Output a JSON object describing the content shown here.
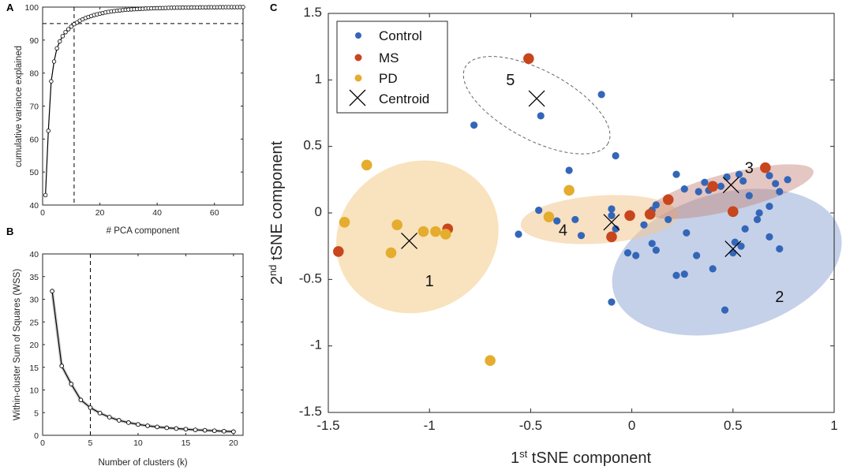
{
  "panels": {
    "a": {
      "label": "A"
    },
    "b": {
      "label": "B"
    },
    "c": {
      "label": "C"
    }
  },
  "chart_data": [
    {
      "type": "line",
      "panel": "A",
      "title": "",
      "xlabel": "# PCA component",
      "ylabel": "cumulative variance explained",
      "xlim": [
        0,
        70
      ],
      "ylim": [
        40,
        100
      ],
      "xticks": [
        "0",
        "20",
        "40",
        "60"
      ],
      "xtick_values": [
        0,
        20,
        40,
        60
      ],
      "yticks": [
        "40",
        "50",
        "60",
        "70",
        "80",
        "90",
        "100"
      ],
      "ytick_values": [
        40,
        50,
        60,
        70,
        80,
        90,
        100
      ],
      "threshold_y": 95,
      "threshold_x": 11,
      "x": [
        1,
        2,
        3,
        4,
        5,
        6,
        7,
        8,
        9,
        10,
        11,
        12,
        13,
        14,
        15,
        16,
        17,
        18,
        19,
        20,
        21,
        22,
        23,
        24,
        25,
        26,
        27,
        28,
        29,
        30,
        31,
        32,
        33,
        34,
        35,
        36,
        37,
        38,
        39,
        40,
        41,
        42,
        43,
        44,
        45,
        46,
        47,
        48,
        49,
        50,
        51,
        52,
        53,
        54,
        55,
        56,
        57,
        58,
        59,
        60,
        61,
        62,
        63,
        64,
        65,
        66,
        67,
        68,
        69,
        70
      ],
      "y": [
        43,
        62.5,
        77.5,
        83.5,
        87.5,
        89.6,
        91.2,
        92.4,
        93.3,
        94.1,
        94.8,
        95.3,
        95.9,
        96.3,
        96.7,
        97.0,
        97.3,
        97.6,
        97.8,
        98.0,
        98.2,
        98.4,
        98.55,
        98.7,
        98.8,
        98.9,
        99.0,
        99.1,
        99.2,
        99.25,
        99.3,
        99.35,
        99.4,
        99.45,
        99.5,
        99.55,
        99.6,
        99.62,
        99.65,
        99.68,
        99.7,
        99.72,
        99.75,
        99.77,
        99.79,
        99.81,
        99.83,
        99.84,
        99.85,
        99.86,
        99.87,
        99.88,
        99.89,
        99.9,
        99.91,
        99.92,
        99.93,
        99.94,
        99.95,
        99.96,
        99.96,
        99.97,
        99.97,
        99.98,
        99.98,
        99.99,
        99.99,
        99.99,
        100,
        100
      ]
    },
    {
      "type": "line",
      "panel": "B",
      "title": "",
      "xlabel": "Number of clusters (k)",
      "ylabel": "Within-cluster Sum of Squares (WSS)",
      "xlim": [
        0,
        21
      ],
      "ylim": [
        0,
        40
      ],
      "xticks": [
        "0",
        "5",
        "10",
        "15",
        "20"
      ],
      "xtick_values": [
        0,
        5,
        10,
        15,
        20
      ],
      "yticks": [
        "0",
        "5",
        "10",
        "15",
        "20",
        "25",
        "30",
        "35",
        "40"
      ],
      "ytick_values": [
        0,
        5,
        10,
        15,
        20,
        25,
        30,
        35,
        40
      ],
      "threshold_x": 5,
      "x": [
        1,
        2,
        3,
        4,
        5,
        6,
        7,
        8,
        9,
        10,
        11,
        12,
        13,
        14,
        15,
        16,
        17,
        18,
        19,
        20
      ],
      "y": [
        31.8,
        15.3,
        11.3,
        7.8,
        6.1,
        4.9,
        4.0,
        3.3,
        2.8,
        2.4,
        2.1,
        1.85,
        1.65,
        1.5,
        1.35,
        1.2,
        1.1,
        1.0,
        0.9,
        0.8
      ]
    },
    {
      "type": "scatter",
      "panel": "C",
      "title": "",
      "xlabel_sup": "st",
      "xlabel_num": "1",
      "xlabel_rest": " tSNE component",
      "ylabel_sup": "nd",
      "ylabel_num": "2",
      "ylabel_rest": " tSNE component",
      "xlim": [
        -1.5,
        1
      ],
      "ylim": [
        -1.5,
        1.5
      ],
      "xticks": [
        "-1.5",
        "-1",
        "-0.5",
        "0",
        "0.5",
        "1"
      ],
      "xtick_values": [
        -1.5,
        -1,
        -0.5,
        0,
        0.5,
        1
      ],
      "yticks": [
        "-1.5",
        "-1",
        "-0.5",
        "0",
        "0.5",
        "1",
        "1.5"
      ],
      "ytick_values": [
        -1.5,
        -1,
        -0.5,
        0,
        0.5,
        1,
        1.5
      ],
      "colors": {
        "control": "#3366b8",
        "ms": "#c8461d",
        "pd": "#e5ac2d",
        "centroid": "#000000"
      },
      "legend": [
        {
          "key": "control",
          "label": "Control"
        },
        {
          "key": "ms",
          "label": "MS"
        },
        {
          "key": "pd",
          "label": "PD"
        },
        {
          "key": "centroid",
          "label": "Centroid"
        }
      ],
      "clusters": [
        {
          "id": "1",
          "cx": -1.06,
          "cy": -0.18,
          "rx": 0.41,
          "ry": 0.56,
          "angle": 28,
          "fill": "#f2c87e",
          "opacity": 0.5,
          "dashed": false,
          "label_x": -1.0,
          "label_y": -0.55
        },
        {
          "id": "2",
          "cx": 0.47,
          "cy": -0.37,
          "rx": 0.58,
          "ry": 0.52,
          "angle": 15,
          "fill": "#7f98cc",
          "opacity": 0.45,
          "dashed": false,
          "label_x": 0.73,
          "label_y": -0.67
        },
        {
          "id": "3",
          "cx": 0.49,
          "cy": 0.16,
          "rx": 0.42,
          "ry": 0.14,
          "angle": 14,
          "fill": "#c4837a",
          "opacity": 0.45,
          "dashed": false,
          "label_x": 0.58,
          "label_y": 0.3
        },
        {
          "id": "4",
          "cx": -0.16,
          "cy": -0.05,
          "rx": 0.39,
          "ry": 0.18,
          "angle": 4,
          "fill": "#f2c792",
          "opacity": 0.55,
          "dashed": false,
          "label_x": -0.34,
          "label_y": -0.17
        },
        {
          "id": "5",
          "cx": -0.47,
          "cy": 0.81,
          "rx": 0.4,
          "ry": 0.26,
          "angle": -28,
          "fill": "none",
          "opacity": 1,
          "dashed": true,
          "label_x": -0.6,
          "label_y": 0.96
        }
      ],
      "centroids": [
        [
          -1.1,
          -0.21
        ],
        [
          0.5,
          -0.27
        ],
        [
          0.49,
          0.21
        ],
        [
          -0.1,
          -0.07
        ],
        [
          -0.47,
          0.86
        ]
      ],
      "control": [
        [
          -0.45,
          0.73
        ],
        [
          -0.78,
          0.66
        ],
        [
          -0.15,
          0.89
        ],
        [
          -0.08,
          0.43
        ],
        [
          -0.31,
          0.32
        ],
        [
          -0.56,
          -0.16
        ],
        [
          -0.46,
          0.02
        ],
        [
          -0.37,
          -0.06
        ],
        [
          -0.28,
          -0.05
        ],
        [
          -0.25,
          -0.17
        ],
        [
          -0.1,
          0.03
        ],
        [
          -0.1,
          -0.02
        ],
        [
          -0.08,
          -0.12
        ],
        [
          -0.02,
          -0.3
        ],
        [
          0.02,
          -0.32
        ],
        [
          0.1,
          -0.23
        ],
        [
          0.12,
          -0.28
        ],
        [
          0.06,
          -0.09
        ],
        [
          0.1,
          0.02
        ],
        [
          0.12,
          0.06
        ],
        [
          0.18,
          -0.05
        ],
        [
          0.22,
          0.29
        ],
        [
          0.26,
          0.18
        ],
        [
          0.33,
          0.16
        ],
        [
          0.36,
          0.23
        ],
        [
          0.38,
          0.17
        ],
        [
          0.44,
          0.2
        ],
        [
          0.47,
          0.27
        ],
        [
          0.53,
          0.29
        ],
        [
          0.55,
          0.24
        ],
        [
          0.58,
          0.13
        ],
        [
          0.68,
          0.28
        ],
        [
          0.71,
          0.22
        ],
        [
          0.73,
          0.16
        ],
        [
          0.77,
          0.25
        ],
        [
          0.27,
          -0.15
        ],
        [
          0.32,
          -0.32
        ],
        [
          0.4,
          -0.42
        ],
        [
          0.5,
          -0.3
        ],
        [
          0.51,
          -0.22
        ],
        [
          0.54,
          -0.25
        ],
        [
          0.56,
          -0.12
        ],
        [
          0.62,
          -0.05
        ],
        [
          0.63,
          0.0
        ],
        [
          0.68,
          0.05
        ],
        [
          0.68,
          -0.18
        ],
        [
          0.73,
          -0.27
        ],
        [
          0.22,
          -0.47
        ],
        [
          0.26,
          -0.46
        ],
        [
          -0.1,
          -0.67
        ],
        [
          0.46,
          -0.73
        ]
      ],
      "ms": [
        [
          -0.51,
          1.16
        ],
        [
          -1.45,
          -0.29
        ],
        [
          -0.91,
          -0.12
        ],
        [
          -0.1,
          -0.18
        ],
        [
          -0.01,
          -0.02
        ],
        [
          0.09,
          -0.01
        ],
        [
          0.18,
          0.1
        ],
        [
          0.4,
          0.2
        ],
        [
          0.5,
          0.01
        ],
        [
          0.66,
          0.34
        ]
      ],
      "pd": [
        [
          -1.31,
          0.36
        ],
        [
          -1.42,
          -0.07
        ],
        [
          -1.19,
          -0.3
        ],
        [
          -1.16,
          -0.09
        ],
        [
          -1.03,
          -0.14
        ],
        [
          -0.97,
          -0.14
        ],
        [
          -0.92,
          -0.16
        ],
        [
          -0.7,
          -1.11
        ],
        [
          -0.41,
          -0.03
        ],
        [
          -0.31,
          0.17
        ]
      ]
    }
  ]
}
